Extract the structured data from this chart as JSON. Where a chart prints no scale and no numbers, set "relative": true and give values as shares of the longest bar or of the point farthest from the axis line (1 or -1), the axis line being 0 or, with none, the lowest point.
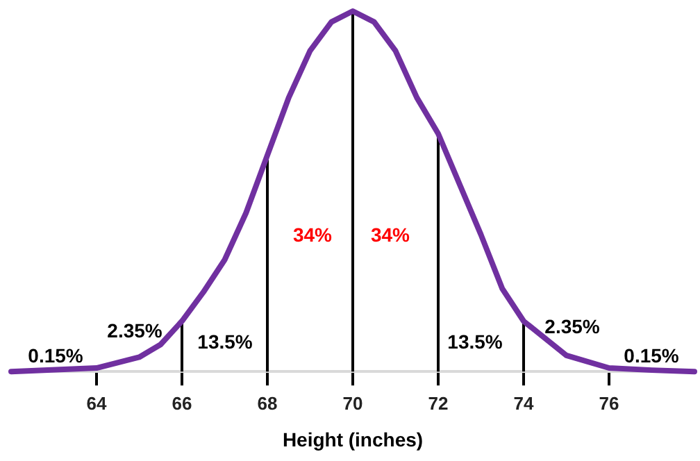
{
  "chart_data": {
    "type": "line",
    "relative": true,
    "xlabel": "Height (inches)",
    "x": [
      62,
      64,
      65,
      65.5,
      66,
      66.5,
      67,
      67.5,
      68,
      68.5,
      69,
      69.5,
      70,
      70.5,
      71,
      71.5,
      72,
      72.5,
      73,
      73.5,
      74,
      75,
      76,
      77,
      78
    ],
    "series": [
      {
        "color": "#7030a0",
        "values": [
          0,
          0.01,
          0.04,
          0.075,
          0.14,
          0.22,
          0.31,
          0.44,
          0.6,
          0.76,
          0.89,
          0.97,
          1,
          0.97,
          0.89,
          0.76,
          0.66,
          0.52,
          0.38,
          0.23,
          0.14,
          0.045,
          0.01,
          0.004,
          0
        ]
      }
    ],
    "xlim": [
      62,
      78
    ],
    "xticks": [
      64,
      66,
      68,
      70,
      72,
      74,
      76
    ],
    "ref_lines": [
      {
        "axis": "x",
        "value": 66,
        "color": "#000000"
      },
      {
        "axis": "x",
        "value": 68,
        "color": "#000000"
      },
      {
        "axis": "x",
        "value": 70,
        "color": "#000000"
      },
      {
        "axis": "x",
        "value": 72,
        "color": "#000000"
      },
      {
        "axis": "x",
        "value": 74,
        "color": "#000000"
      }
    ],
    "annotations": [
      "0.15%",
      "2.35%",
      "13.5%",
      "34%",
      "34%",
      "13.5%",
      "2.35%",
      "0.15%"
    ],
    "grid": false,
    "legend": false,
    "marker": "none",
    "line_style": "solid"
  }
}
